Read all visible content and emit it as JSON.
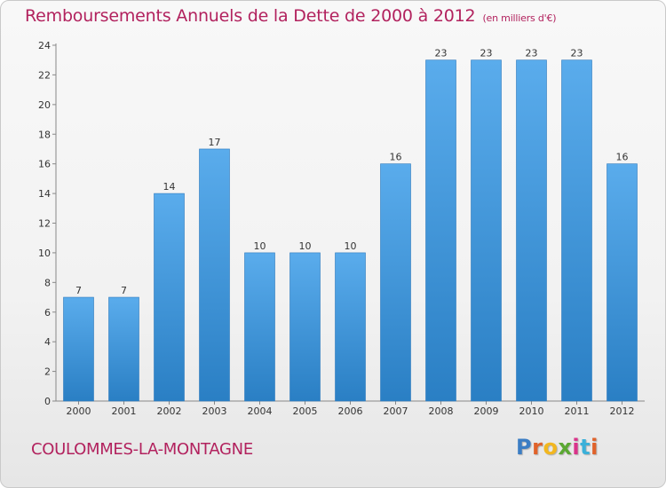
{
  "chart_data": {
    "type": "bar",
    "title": "Remboursements Annuels de la Dette de 2000 à 2012",
    "subtitle": "(en milliers d'€)",
    "xlabel": "",
    "ylabel": "",
    "categories": [
      "2000",
      "2001",
      "2002",
      "2003",
      "2004",
      "2005",
      "2006",
      "2007",
      "2008",
      "2009",
      "2010",
      "2011",
      "2012"
    ],
    "values": [
      7,
      7,
      14,
      17,
      10,
      10,
      10,
      16,
      23,
      23,
      23,
      23,
      16
    ],
    "ylim": [
      0,
      24
    ],
    "yticks": [
      "0",
      "2",
      "4",
      "6",
      "8",
      "10",
      "12",
      "14",
      "16",
      "18",
      "20",
      "22",
      "24"
    ],
    "grid": false,
    "bar_color": "#4a9ee0"
  },
  "footer": {
    "commune": "COULOMMES-LA-MONTAGNE",
    "logo_letters": [
      "P",
      "r",
      "o",
      "x",
      "i",
      "t",
      "i"
    ]
  }
}
